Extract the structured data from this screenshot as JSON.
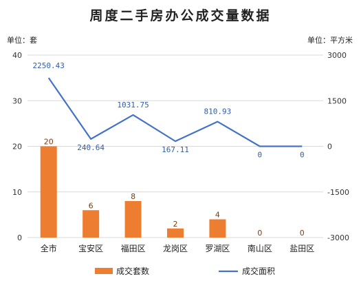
{
  "chart_data": {
    "type": "bar+line",
    "title": "周度二手房办公成交量数据",
    "left_unit": "单位：套",
    "right_unit": "单位：平方米",
    "categories": [
      "全市",
      "宝安区",
      "福田区",
      "龙岗区",
      "罗湖区",
      "南山区",
      "盐田区"
    ],
    "left_axis": {
      "ylim": [
        0,
        40
      ],
      "ticks": [
        "0",
        "10",
        "20",
        "30",
        "40"
      ]
    },
    "right_axis": {
      "ylim": [
        -3000,
        3000
      ],
      "ticks": [
        "-3000",
        "-1500",
        "0",
        "1500",
        "3000"
      ]
    },
    "series": [
      {
        "name": "成交套数",
        "type": "bar",
        "axis": "left",
        "color": "#ED7D31",
        "values": [
          20,
          6,
          8,
          2,
          4,
          0,
          0
        ],
        "labels": [
          "20",
          "6",
          "8",
          "2",
          "4",
          "0",
          "0"
        ]
      },
      {
        "name": "成交面积",
        "type": "line",
        "axis": "right",
        "color": "#4472C4",
        "values": [
          2250.43,
          240.64,
          1031.75,
          167.11,
          810.93,
          0,
          0
        ],
        "labels": [
          "2250.43",
          "240.64",
          "1031.75",
          "167.11",
          "810.93",
          "0",
          "0"
        ]
      }
    ],
    "grid": true,
    "legend": "bottom"
  }
}
